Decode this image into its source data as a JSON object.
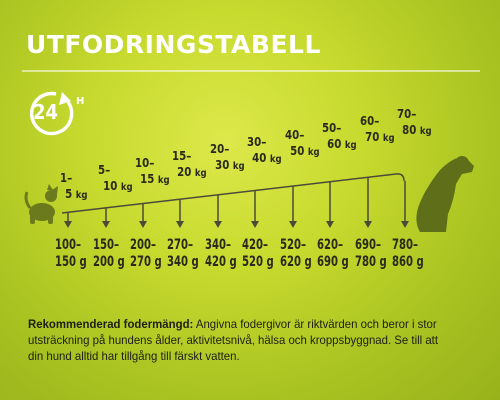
{
  "title": "UTFODRINGSTABELL",
  "badge": {
    "number": "24",
    "suffix": "H"
  },
  "weights": [
    {
      "line1": "1–",
      "line2": "5",
      "unit": "kg"
    },
    {
      "line1": "5–",
      "line2": "10",
      "unit": "kg"
    },
    {
      "line1": "10–",
      "line2": "15",
      "unit": "kg"
    },
    {
      "line1": "15–",
      "line2": "20",
      "unit": "kg"
    },
    {
      "line1": "20–",
      "line2": "30",
      "unit": "kg"
    },
    {
      "line1": "30–",
      "line2": "40",
      "unit": "kg"
    },
    {
      "line1": "40–",
      "line2": "50",
      "unit": "kg"
    },
    {
      "line1": "50–",
      "line2": "60",
      "unit": "kg"
    },
    {
      "line1": "60–",
      "line2": "70",
      "unit": "kg"
    },
    {
      "line1": "70–",
      "line2": "80",
      "unit": "kg"
    }
  ],
  "grams": [
    {
      "line1": "100–",
      "line2": "150 g"
    },
    {
      "line1": "150–",
      "line2": "200 g"
    },
    {
      "line1": "200–",
      "line2": "270 g"
    },
    {
      "line1": "270–",
      "line2": "340 g"
    },
    {
      "line1": "340–",
      "line2": "420 g"
    },
    {
      "line1": "420–",
      "line2": "520 g"
    },
    {
      "line1": "520–",
      "line2": "620 g"
    },
    {
      "line1": "620–",
      "line2": "690 g"
    },
    {
      "line1": "690–",
      "line2": "780 g"
    },
    {
      "line1": "780–",
      "line2": "860 g"
    }
  ],
  "note": {
    "bold": "Rekommenderad fodermängd:",
    "text": " Angivna fodergivor är riktvärden och beror i stor utsträckning på hundens ålder, aktivitetsnivå, hälsa och kroppsbyggnad. Se till att din hund alltid har tillgång till färskt vatten."
  },
  "colors": {
    "background": "#c7da2e",
    "text_dark": "#2a2a1a",
    "title": "#ffffff",
    "dog_silhouette": "#5f6e18",
    "lines": "#4a4a3a"
  }
}
